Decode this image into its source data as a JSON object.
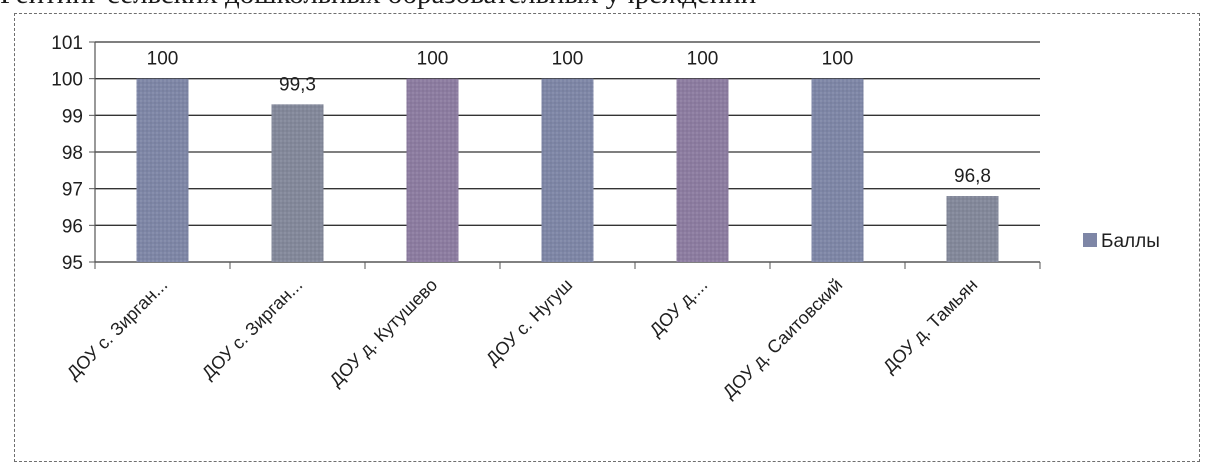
{
  "header": {
    "text": "Рейтинг сельских дошкольных образовательных учреждений"
  },
  "colors": {
    "bar_a": "#7e86a6",
    "bar_b": "#8c7ca0",
    "bar_c": "#83889a",
    "axis": "#555555",
    "grid": "#333333"
  },
  "chart_data": {
    "type": "bar",
    "title": "",
    "xlabel": "",
    "ylabel": "",
    "categories": [
      "ДОУ с. Зирган...",
      "ДОУ с. Зирган...",
      "ДОУ д. Кутушево",
      "ДОУ с. Нугуш",
      "ДОУ д....",
      "ДОУ д. Саитовский",
      "ДОУ д. Тамьян"
    ],
    "series": [
      {
        "name": "Баллы",
        "values": [
          100,
          99.3,
          100,
          100,
          100,
          100,
          96.8
        ],
        "value_labels": [
          "100",
          "99,3",
          "100",
          "100",
          "100",
          "100",
          "96,8"
        ]
      }
    ],
    "ylim": [
      95,
      101
    ],
    "yticks": [
      "95",
      "96",
      "97",
      "98",
      "99",
      "100",
      "101"
    ],
    "grid": true,
    "legend_position": "right"
  }
}
